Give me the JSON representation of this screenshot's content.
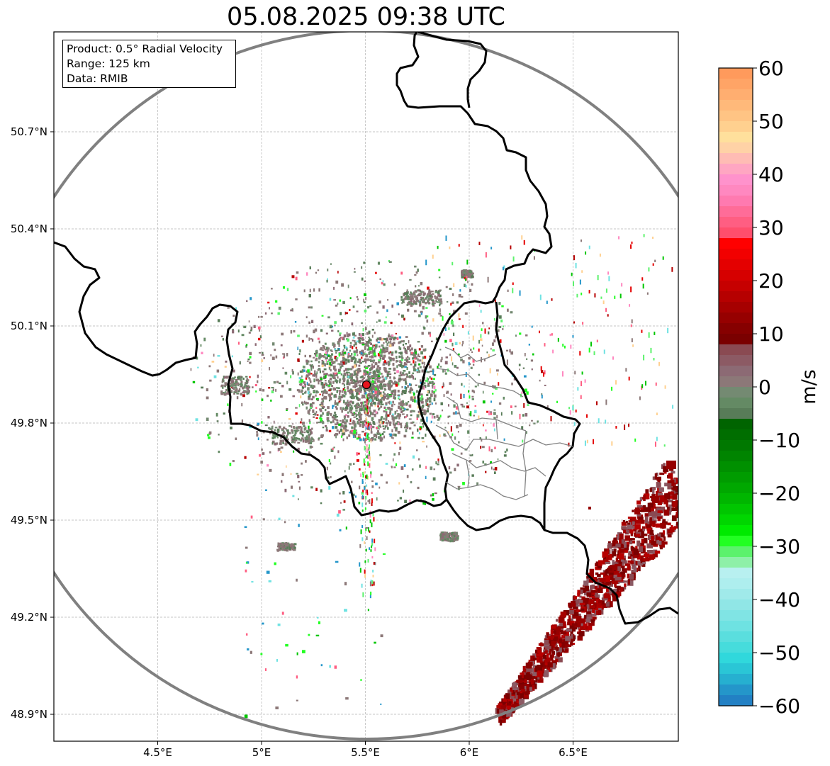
{
  "title": "05.08.2025 09:38 UTC",
  "info_box": {
    "lines": [
      "Product: 0.5° Radial Velocity",
      "Range: 125 km",
      "Data: RMIB"
    ]
  },
  "map": {
    "lon_range": [
      4.0,
      7.0
    ],
    "lat_range": [
      48.8,
      51.0
    ],
    "radar_site": {
      "lon": 5.505,
      "lat": 49.914
    },
    "range_ring_color": "#808080",
    "border_color": "#000000",
    "admin_border_color": "#808080",
    "radar_marker_color": "#e8141e",
    "lon_ticks": [
      {
        "value": 4.5,
        "label": "4.5°E"
      },
      {
        "value": 5.0,
        "label": "5°E"
      },
      {
        "value": 5.5,
        "label": "5.5°E"
      },
      {
        "value": 6.0,
        "label": "6°E"
      },
      {
        "value": 6.5,
        "label": "6.5°E"
      }
    ],
    "lat_ticks": [
      {
        "value": 48.9,
        "label": "48.9°N"
      },
      {
        "value": 49.2,
        "label": "49.2°N"
      },
      {
        "value": 49.5,
        "label": "49.5°N"
      },
      {
        "value": 49.8,
        "label": "49.8°N"
      },
      {
        "value": 50.1,
        "label": "50.1°N"
      },
      {
        "value": 50.4,
        "label": "50.4°N"
      },
      {
        "value": 50.7,
        "label": "50.7°N"
      }
    ]
  },
  "colorbar": {
    "label": "m/s",
    "range": [
      -60,
      60
    ],
    "ticks": [
      {
        "value": 60,
        "label": "60"
      },
      {
        "value": 50,
        "label": "50"
      },
      {
        "value": 40,
        "label": "40"
      },
      {
        "value": 30,
        "label": "30"
      },
      {
        "value": 20,
        "label": "20"
      },
      {
        "value": 10,
        "label": "10"
      },
      {
        "value": 0,
        "label": "0"
      },
      {
        "value": -10,
        "label": "−10"
      },
      {
        "value": -20,
        "label": "−20"
      },
      {
        "value": -30,
        "label": "−30"
      },
      {
        "value": -40,
        "label": "−40"
      },
      {
        "value": -50,
        "label": "−50"
      },
      {
        "value": -60,
        "label": "−60"
      }
    ],
    "bands": [
      {
        "from": 58,
        "to": 60,
        "color": "#ff9a5c"
      },
      {
        "from": 56,
        "to": 58,
        "color": "#ffa466"
      },
      {
        "from": 54,
        "to": 56,
        "color": "#ffae70"
      },
      {
        "from": 52,
        "to": 54,
        "color": "#ffb97a"
      },
      {
        "from": 50,
        "to": 52,
        "color": "#ffc484"
      },
      {
        "from": 48,
        "to": 50,
        "color": "#ffd08f"
      },
      {
        "from": 46,
        "to": 48,
        "color": "#ffe09c"
      },
      {
        "from": 44,
        "to": 46,
        "color": "#ffd2a6"
      },
      {
        "from": 42,
        "to": 44,
        "color": "#ffbcb4"
      },
      {
        "from": 40,
        "to": 42,
        "color": "#ffa6c2"
      },
      {
        "from": 38,
        "to": 40,
        "color": "#ff92cc"
      },
      {
        "from": 36,
        "to": 38,
        "color": "#ff88c0"
      },
      {
        "from": 34,
        "to": 36,
        "color": "#ff7ab0"
      },
      {
        "from": 32,
        "to": 34,
        "color": "#ff6c98"
      },
      {
        "from": 30,
        "to": 32,
        "color": "#ff5e82"
      },
      {
        "from": 28,
        "to": 30,
        "color": "#ff4e6c"
      },
      {
        "from": 26,
        "to": 28,
        "color": "#ff0000"
      },
      {
        "from": 24,
        "to": 26,
        "color": "#f20000"
      },
      {
        "from": 22,
        "to": 24,
        "color": "#e40000"
      },
      {
        "from": 20,
        "to": 22,
        "color": "#d60000"
      },
      {
        "from": 18,
        "to": 20,
        "color": "#c60000"
      },
      {
        "from": 16,
        "to": 18,
        "color": "#b60000"
      },
      {
        "from": 14,
        "to": 16,
        "color": "#a60000"
      },
      {
        "from": 12,
        "to": 14,
        "color": "#960000"
      },
      {
        "from": 10,
        "to": 12,
        "color": "#860000"
      },
      {
        "from": 8,
        "to": 10,
        "color": "#7a0000"
      },
      {
        "from": 6,
        "to": 8,
        "color": "#8a4a52"
      },
      {
        "from": 4,
        "to": 6,
        "color": "#8c5a64"
      },
      {
        "from": 2,
        "to": 4,
        "color": "#8c6a74"
      },
      {
        "from": 0,
        "to": 2,
        "color": "#8c7878"
      },
      {
        "from": -2,
        "to": 0,
        "color": "#748a72"
      },
      {
        "from": -4,
        "to": -2,
        "color": "#648a64"
      },
      {
        "from": -6,
        "to": -4,
        "color": "#587c58"
      },
      {
        "from": -8,
        "to": -6,
        "color": "#006400"
      },
      {
        "from": -10,
        "to": -8,
        "color": "#006e00"
      },
      {
        "from": -12,
        "to": -10,
        "color": "#007800"
      },
      {
        "from": -14,
        "to": -12,
        "color": "#008400"
      },
      {
        "from": -16,
        "to": -14,
        "color": "#009000"
      },
      {
        "from": -18,
        "to": -16,
        "color": "#009c00"
      },
      {
        "from": -20,
        "to": -18,
        "color": "#00a800"
      },
      {
        "from": -22,
        "to": -20,
        "color": "#00b600"
      },
      {
        "from": -24,
        "to": -22,
        "color": "#00c600"
      },
      {
        "from": -26,
        "to": -24,
        "color": "#00d600"
      },
      {
        "from": -28,
        "to": -26,
        "color": "#00ea00"
      },
      {
        "from": -30,
        "to": -28,
        "color": "#22ff22"
      },
      {
        "from": -32,
        "to": -30,
        "color": "#5cf26c"
      },
      {
        "from": -34,
        "to": -32,
        "color": "#8ef0a8"
      },
      {
        "from": -36,
        "to": -34,
        "color": "#b8f0f0"
      },
      {
        "from": -38,
        "to": -36,
        "color": "#aeeeee"
      },
      {
        "from": -40,
        "to": -38,
        "color": "#a0eaea"
      },
      {
        "from": -42,
        "to": -40,
        "color": "#90e6e6"
      },
      {
        "from": -44,
        "to": -42,
        "color": "#80e4e4"
      },
      {
        "from": -46,
        "to": -44,
        "color": "#6ee2e2"
      },
      {
        "from": -48,
        "to": -46,
        "color": "#5adede"
      },
      {
        "from": -50,
        "to": -48,
        "color": "#46dcdc"
      },
      {
        "from": -52,
        "to": -50,
        "color": "#30d8dc"
      },
      {
        "from": -54,
        "to": -52,
        "color": "#2ac6d6"
      },
      {
        "from": -56,
        "to": -54,
        "color": "#26b0d0"
      },
      {
        "from": -58,
        "to": -56,
        "color": "#2496ca"
      },
      {
        "from": -60,
        "to": -58,
        "color": "#2280c4"
      }
    ]
  }
}
